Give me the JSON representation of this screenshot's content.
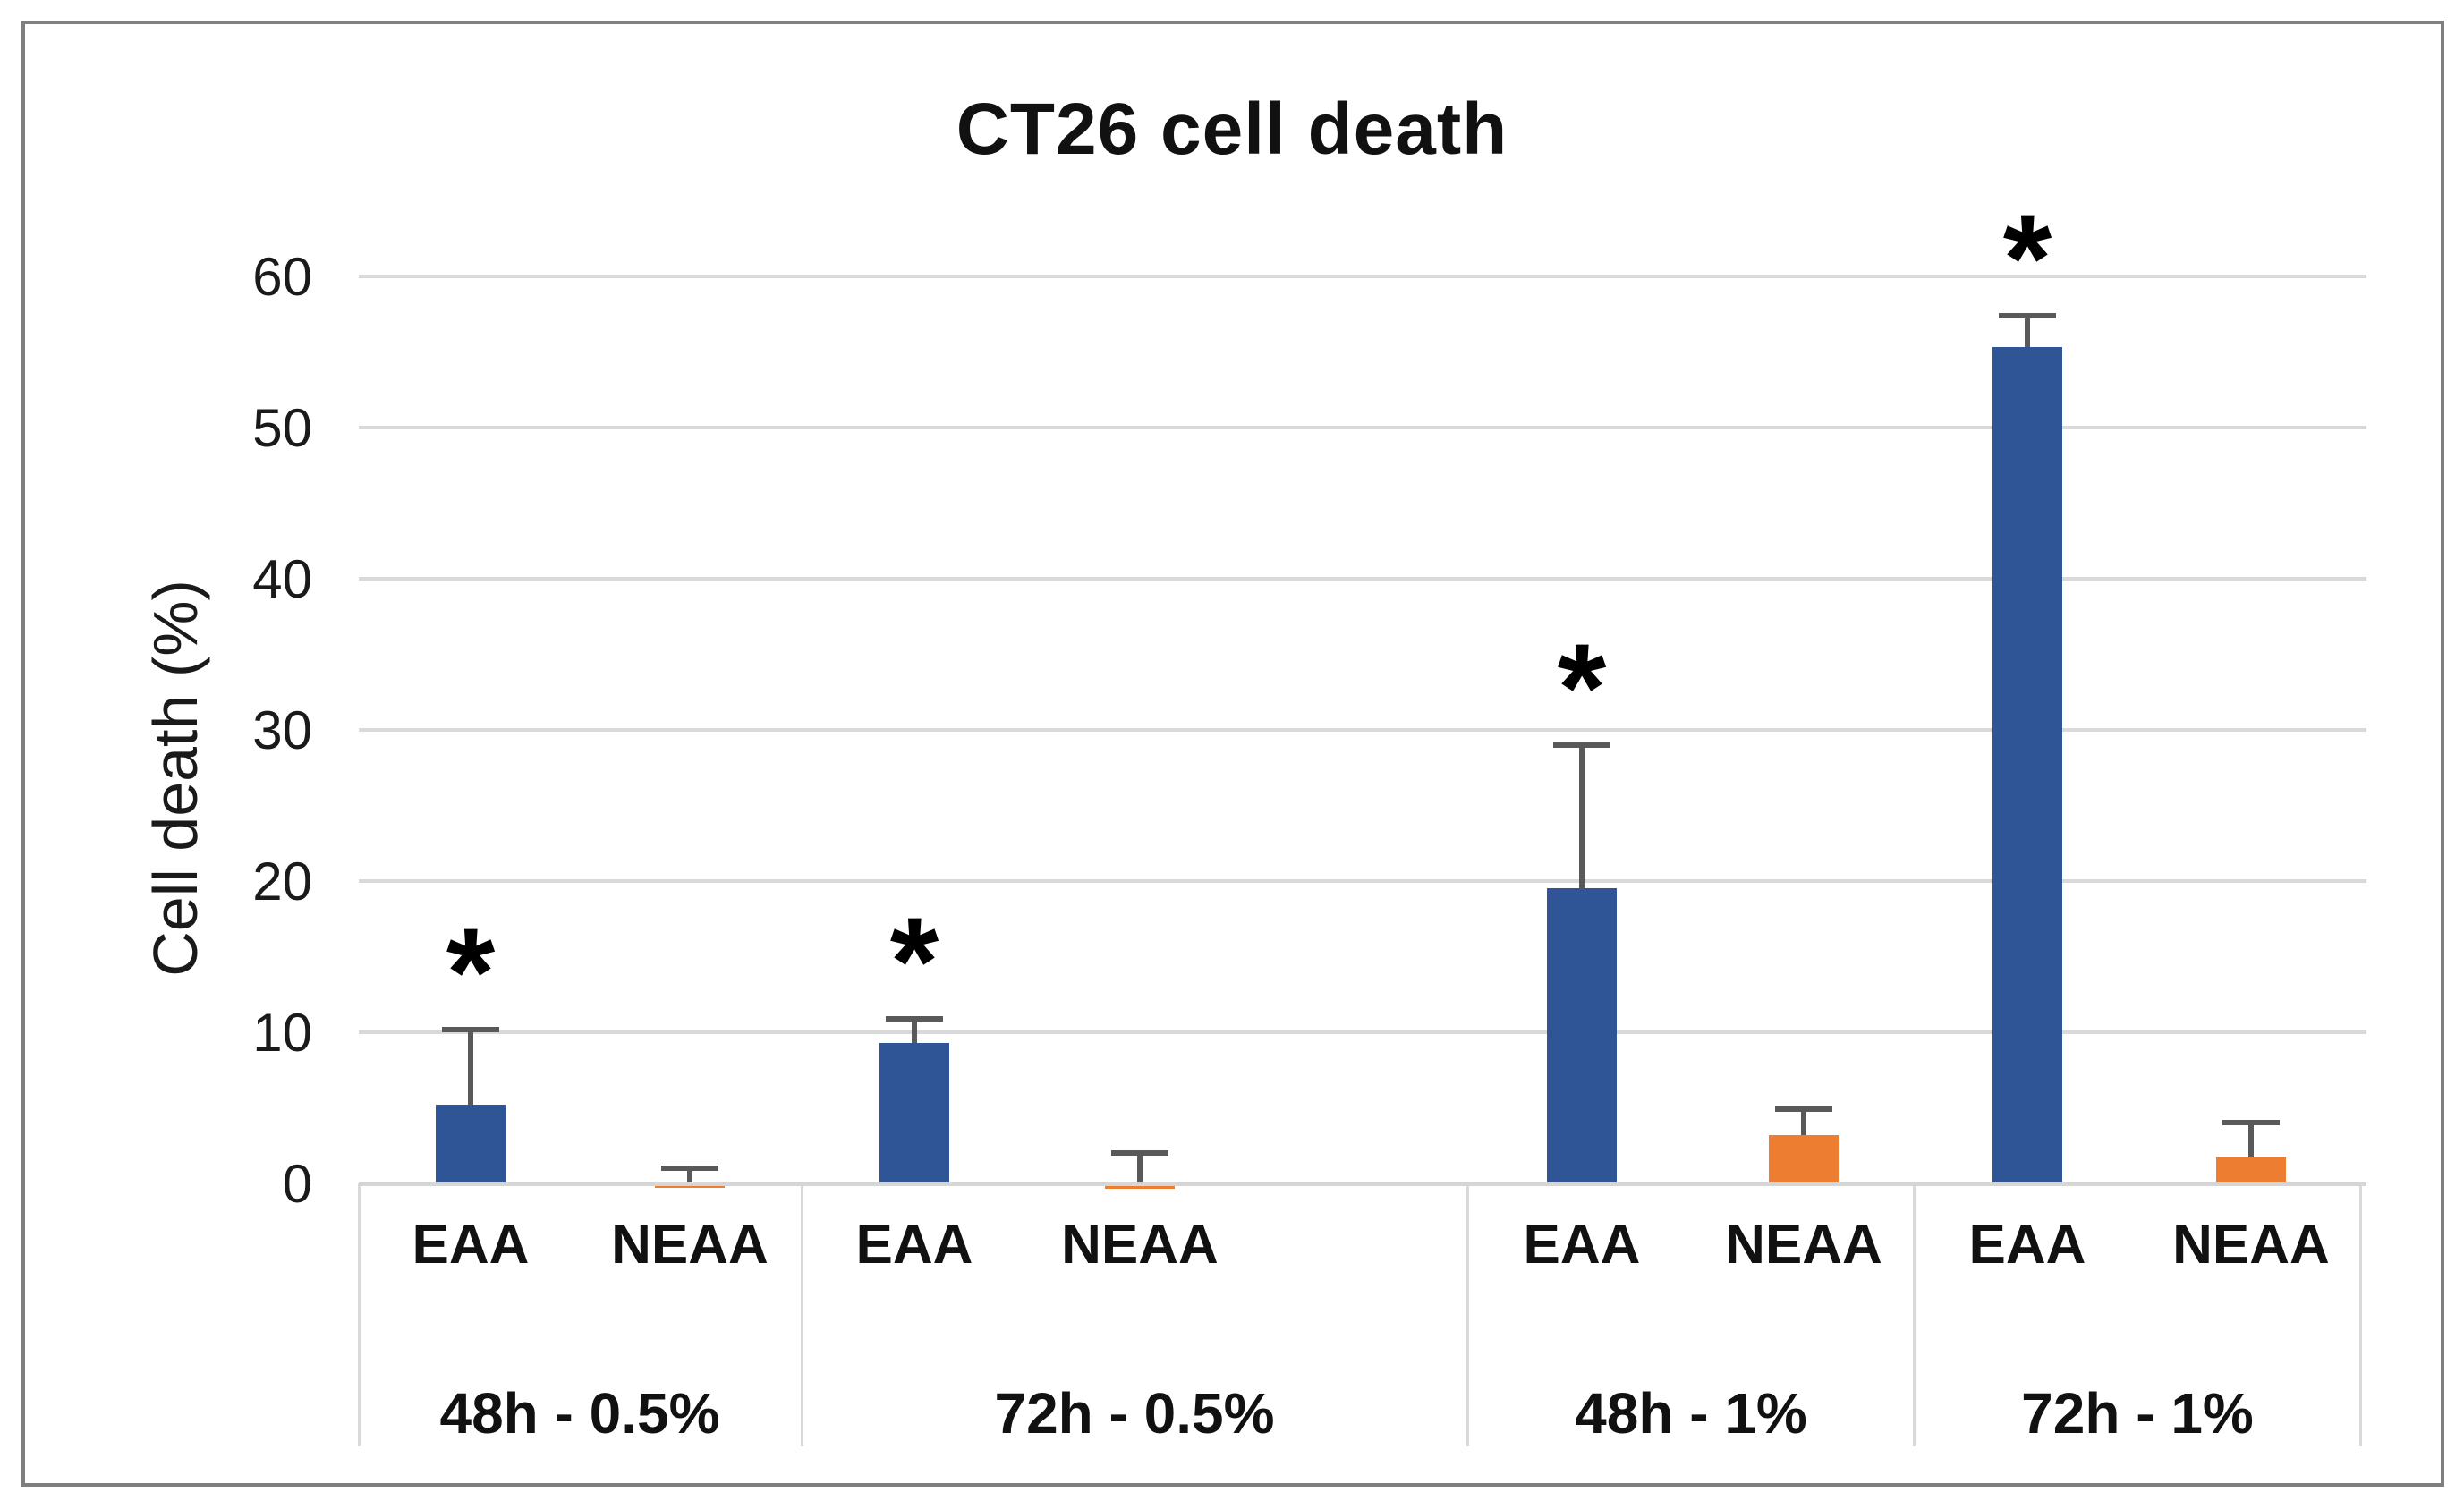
{
  "title": "CT26 cell death",
  "y_axis_title": "Cell death (%)",
  "colors": {
    "eaa_bar": "#2F5597",
    "neaa_bar": "#ED7D31",
    "error_bar": "#595959",
    "gridline": "#D9D9D9",
    "axis_line": "#D6D6D6",
    "category_divider": "#D9D9D9",
    "frame_border": "#7F7F7F",
    "text": "#111111",
    "background": "#FFFFFF"
  },
  "chart_data": {
    "type": "bar",
    "title": "CT26 cell death",
    "xlabel": "",
    "ylabel": "Cell death (%)",
    "ylim": [
      0,
      60
    ],
    "yticks": [
      0,
      10,
      20,
      30,
      40,
      50,
      60
    ],
    "grid": "horizontal",
    "legend": "none",
    "significance_marker": "*",
    "sub_categories": [
      "EAA",
      "NEAA"
    ],
    "series_colors": {
      "EAA": "#2F5597",
      "NEAA": "#ED7D31"
    },
    "groups": [
      {
        "label": "48h - 0.5%",
        "bars": [
          {
            "series": "EAA",
            "value": 5.2,
            "error_up": 5.0,
            "significant": true
          },
          {
            "series": "NEAA",
            "value": -0.2,
            "error_up": 1.0,
            "significant": false
          }
        ]
      },
      {
        "label": "72h - 0.5%",
        "bars": [
          {
            "series": "EAA",
            "value": 9.3,
            "error_up": 1.6,
            "significant": true
          },
          {
            "series": "NEAA",
            "value": -0.3,
            "error_up": 2.0,
            "significant": false
          }
        ]
      },
      {
        "label": "48h - 1%",
        "bars": [
          {
            "series": "EAA",
            "value": 19.5,
            "error_up": 9.5,
            "significant": true
          },
          {
            "series": "NEAA",
            "value": 3.2,
            "error_up": 1.7,
            "significant": false
          }
        ]
      },
      {
        "label": "72h - 1%",
        "bars": [
          {
            "series": "EAA",
            "value": 55.3,
            "error_up": 2.1,
            "significant": true
          },
          {
            "series": "NEAA",
            "value": 1.7,
            "error_up": 2.3,
            "significant": false
          }
        ]
      }
    ]
  }
}
